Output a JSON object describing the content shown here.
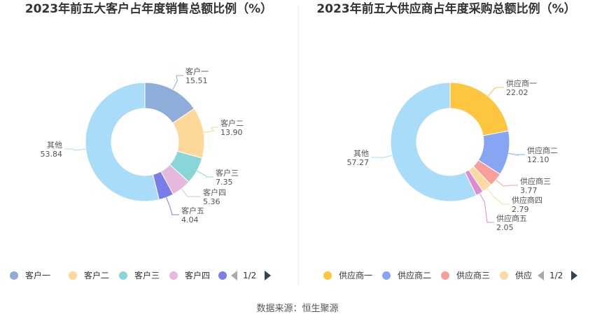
{
  "source": "数据来源：恒生聚源",
  "chart_data": [
    {
      "type": "pie",
      "title": "2023年前五大客户占年度销售总额比例（%）",
      "categories": [
        "客户一",
        "客户二",
        "客户三",
        "客户四",
        "客户五",
        "其他"
      ],
      "values": [
        15.51,
        13.9,
        7.35,
        5.36,
        4.04,
        53.84
      ],
      "value_labels": [
        "15.51",
        "13.90",
        "7.35",
        "5.36",
        "4.04",
        "53.84"
      ],
      "colors": [
        "#8eaed9",
        "#fed899",
        "#88d6d7",
        "#e5b8dc",
        "#7a7de8",
        "#a8dcf8"
      ],
      "legend": {
        "position": "bottom",
        "visible_items": [
          "客户一",
          "客户二",
          "客户三",
          "客户四"
        ],
        "page": "1/2"
      }
    },
    {
      "type": "pie",
      "title": "2023年前五大供应商占年度采购总额比例（%）",
      "categories": [
        "供应商一",
        "供应商二",
        "供应商三",
        "供应商四",
        "供应商五",
        "其他"
      ],
      "values": [
        22.02,
        12.1,
        3.77,
        2.79,
        2.05,
        57.27
      ],
      "value_labels": [
        "22.02",
        "12.10",
        "3.77",
        "2.79",
        "2.05",
        "57.27"
      ],
      "colors": [
        "#fec53e",
        "#86a5f3",
        "#f6a099",
        "#fcd9a0",
        "#e08bd0",
        "#a8dcf8"
      ],
      "legend": {
        "position": "bottom",
        "visible_items": [
          "供应商一",
          "供应商二",
          "供应商三",
          "供应"
        ],
        "page": "1/2"
      }
    }
  ]
}
